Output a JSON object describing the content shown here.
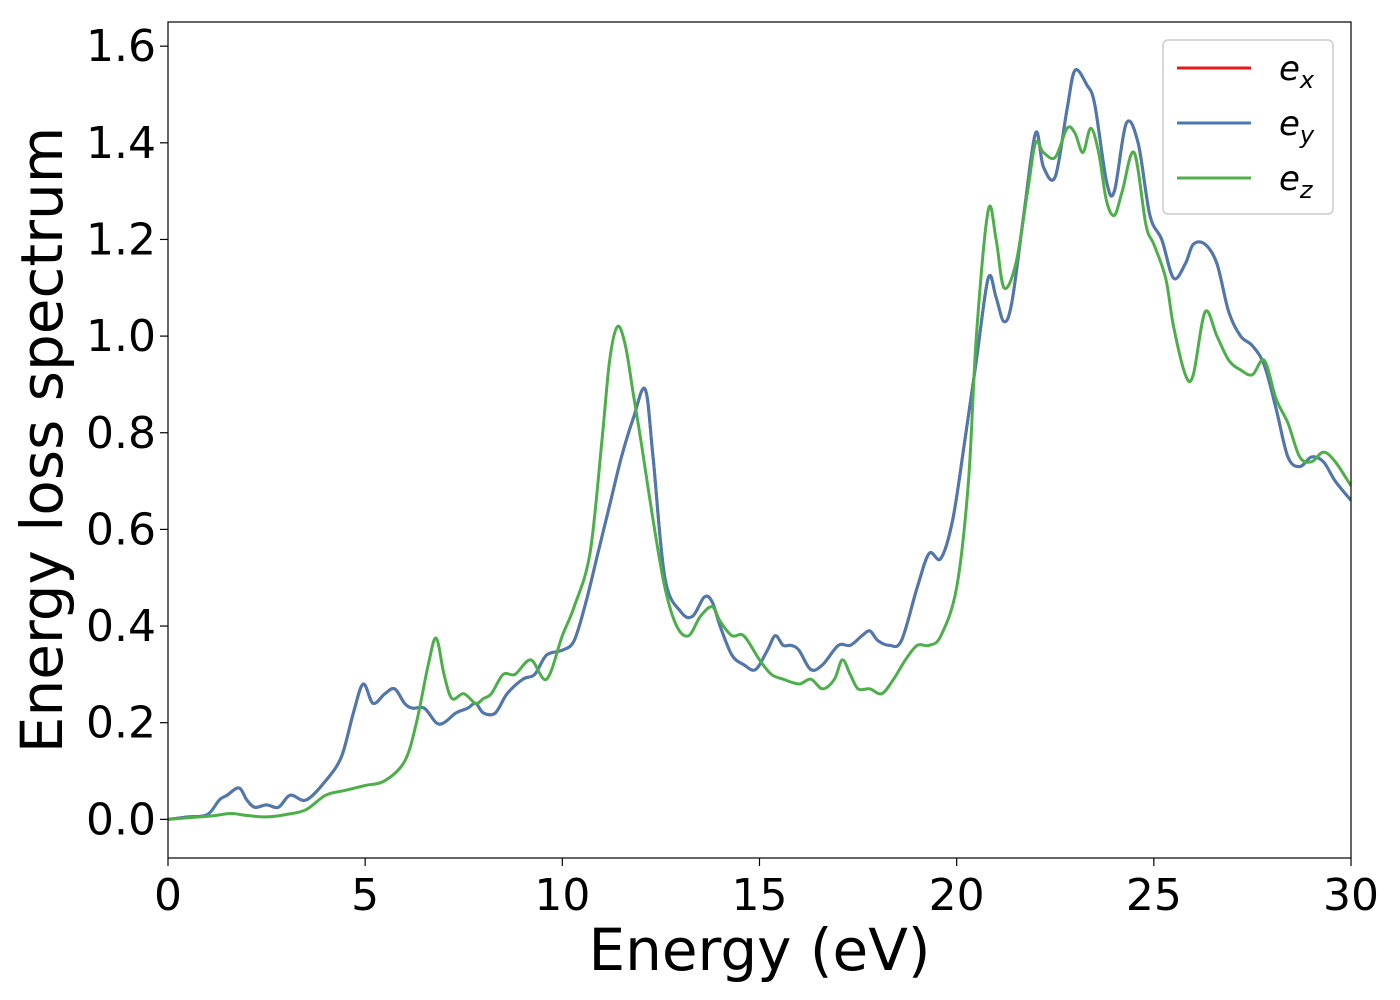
{
  "chart_data": {
    "type": "line",
    "xlabel": "Energy (eV)",
    "ylabel": "Energy loss spectrum",
    "xlim": [
      0,
      30
    ],
    "ylim": [
      -0.08,
      1.65
    ],
    "xticks": [
      0,
      5,
      10,
      15,
      20,
      25,
      30
    ],
    "xtick_labels": [
      "0",
      "5",
      "10",
      "15",
      "20",
      "25",
      "30"
    ],
    "yticks": [
      0.0,
      0.2,
      0.4,
      0.6,
      0.8,
      1.0,
      1.2,
      1.4,
      1.6
    ],
    "ytick_labels": [
      "0.0",
      "0.2",
      "0.4",
      "0.6",
      "0.8",
      "1.0",
      "1.2",
      "1.4",
      "1.6"
    ],
    "grid": false,
    "legend_position": "top-right",
    "series": [
      {
        "name": "e_x",
        "legend_base": "e",
        "legend_sub": "x",
        "color": "#e41a1c",
        "x": [
          0,
          0.5,
          1.0,
          1.3,
          1.5,
          1.8,
          2.0,
          2.2,
          2.5,
          2.8,
          3.1,
          3.5,
          4.0,
          4.4,
          4.7,
          4.95,
          5.2,
          5.5,
          5.75,
          6.0,
          6.2,
          6.5,
          6.8,
          7.0,
          7.3,
          7.6,
          7.8,
          8.0,
          8.3,
          8.6,
          9.0,
          9.3,
          9.6,
          10.0,
          10.3,
          10.6,
          10.9,
          11.2,
          11.5,
          11.8,
          12.1,
          12.3,
          12.6,
          13.0,
          13.3,
          13.6,
          13.8,
          14.0,
          14.3,
          14.6,
          14.9,
          15.2,
          15.4,
          15.6,
          15.8,
          16.0,
          16.3,
          16.6,
          17.0,
          17.3,
          17.6,
          17.8,
          18.0,
          18.3,
          18.6,
          19.0,
          19.3,
          19.6,
          19.9,
          20.2,
          20.5,
          20.8,
          21.0,
          21.2,
          21.4,
          21.7,
          22.0,
          22.2,
          22.5,
          22.8,
          23.0,
          23.3,
          23.5,
          23.8,
          24.0,
          24.3,
          24.6,
          24.9,
          25.2,
          25.5,
          25.8,
          26.0,
          26.3,
          26.6,
          26.9,
          27.2,
          27.5,
          27.8,
          28.1,
          28.4,
          28.7,
          29.0,
          29.3,
          29.6,
          30.0
        ],
        "y": [
          0.0,
          0.005,
          0.01,
          0.04,
          0.05,
          0.065,
          0.04,
          0.025,
          0.03,
          0.025,
          0.05,
          0.04,
          0.08,
          0.13,
          0.22,
          0.28,
          0.24,
          0.26,
          0.27,
          0.24,
          0.23,
          0.23,
          0.2,
          0.2,
          0.22,
          0.23,
          0.24,
          0.22,
          0.22,
          0.26,
          0.29,
          0.3,
          0.34,
          0.35,
          0.37,
          0.45,
          0.55,
          0.65,
          0.75,
          0.83,
          0.89,
          0.75,
          0.5,
          0.43,
          0.42,
          0.46,
          0.45,
          0.4,
          0.34,
          0.32,
          0.31,
          0.35,
          0.38,
          0.36,
          0.36,
          0.35,
          0.31,
          0.32,
          0.36,
          0.36,
          0.38,
          0.39,
          0.37,
          0.36,
          0.37,
          0.48,
          0.55,
          0.54,
          0.62,
          0.78,
          0.95,
          1.12,
          1.08,
          1.03,
          1.07,
          1.25,
          1.42,
          1.35,
          1.33,
          1.47,
          1.55,
          1.52,
          1.48,
          1.32,
          1.3,
          1.44,
          1.4,
          1.25,
          1.2,
          1.12,
          1.15,
          1.19,
          1.19,
          1.15,
          1.05,
          1.0,
          0.98,
          0.94,
          0.85,
          0.75,
          0.73,
          0.75,
          0.74,
          0.7,
          0.66
        ]
      },
      {
        "name": "e_y",
        "legend_base": "e",
        "legend_sub": "y",
        "color": "#4a7ab0",
        "x": [
          0,
          0.5,
          1.0,
          1.3,
          1.5,
          1.8,
          2.0,
          2.2,
          2.5,
          2.8,
          3.1,
          3.5,
          4.0,
          4.4,
          4.7,
          4.95,
          5.2,
          5.5,
          5.75,
          6.0,
          6.2,
          6.5,
          6.8,
          7.0,
          7.3,
          7.6,
          7.8,
          8.0,
          8.3,
          8.6,
          9.0,
          9.3,
          9.6,
          10.0,
          10.3,
          10.6,
          10.9,
          11.2,
          11.5,
          11.8,
          12.1,
          12.3,
          12.6,
          13.0,
          13.3,
          13.6,
          13.8,
          14.0,
          14.3,
          14.6,
          14.9,
          15.2,
          15.4,
          15.6,
          15.8,
          16.0,
          16.3,
          16.6,
          17.0,
          17.3,
          17.6,
          17.8,
          18.0,
          18.3,
          18.6,
          19.0,
          19.3,
          19.6,
          19.9,
          20.2,
          20.5,
          20.8,
          21.0,
          21.2,
          21.4,
          21.7,
          22.0,
          22.2,
          22.5,
          22.8,
          23.0,
          23.3,
          23.5,
          23.8,
          24.0,
          24.3,
          24.6,
          24.9,
          25.2,
          25.5,
          25.8,
          26.0,
          26.3,
          26.6,
          26.9,
          27.2,
          27.5,
          27.8,
          28.1,
          28.4,
          28.7,
          29.0,
          29.3,
          29.6,
          30.0
        ],
        "y": [
          0.0,
          0.005,
          0.01,
          0.04,
          0.05,
          0.065,
          0.04,
          0.025,
          0.03,
          0.025,
          0.05,
          0.04,
          0.08,
          0.13,
          0.22,
          0.28,
          0.24,
          0.26,
          0.27,
          0.24,
          0.23,
          0.23,
          0.2,
          0.2,
          0.22,
          0.23,
          0.24,
          0.22,
          0.22,
          0.26,
          0.29,
          0.3,
          0.34,
          0.35,
          0.37,
          0.45,
          0.55,
          0.65,
          0.75,
          0.83,
          0.89,
          0.75,
          0.5,
          0.43,
          0.42,
          0.46,
          0.45,
          0.4,
          0.34,
          0.32,
          0.31,
          0.35,
          0.38,
          0.36,
          0.36,
          0.35,
          0.31,
          0.32,
          0.36,
          0.36,
          0.38,
          0.39,
          0.37,
          0.36,
          0.37,
          0.48,
          0.55,
          0.54,
          0.62,
          0.78,
          0.95,
          1.12,
          1.08,
          1.03,
          1.07,
          1.25,
          1.42,
          1.35,
          1.33,
          1.47,
          1.55,
          1.52,
          1.48,
          1.32,
          1.3,
          1.44,
          1.4,
          1.25,
          1.2,
          1.12,
          1.15,
          1.19,
          1.19,
          1.15,
          1.05,
          1.0,
          0.98,
          0.94,
          0.85,
          0.75,
          0.73,
          0.75,
          0.74,
          0.7,
          0.66
        ]
      },
      {
        "name": "e_z",
        "legend_base": "e",
        "legend_sub": "z",
        "color": "#4daf4a",
        "x": [
          0,
          0.8,
          1.2,
          1.6,
          2.0,
          2.5,
          3.0,
          3.5,
          4.0,
          4.5,
          5.0,
          5.5,
          6.0,
          6.3,
          6.6,
          6.8,
          7.0,
          7.2,
          7.5,
          7.8,
          8.0,
          8.2,
          8.5,
          8.8,
          9.2,
          9.6,
          10.0,
          10.3,
          10.7,
          11.0,
          11.2,
          11.4,
          11.6,
          11.8,
          12.0,
          12.3,
          12.6,
          12.9,
          13.2,
          13.5,
          13.8,
          14.0,
          14.3,
          14.6,
          15.0,
          15.3,
          15.6,
          16.0,
          16.3,
          16.6,
          16.9,
          17.1,
          17.3,
          17.5,
          17.8,
          18.1,
          18.4,
          18.7,
          19.0,
          19.3,
          19.6,
          20.0,
          20.3,
          20.5,
          20.8,
          21.0,
          21.2,
          21.5,
          21.8,
          22.0,
          22.2,
          22.5,
          22.8,
          23.0,
          23.2,
          23.4,
          23.6,
          23.8,
          24.0,
          24.2,
          24.5,
          24.8,
          25.0,
          25.3,
          25.5,
          25.8,
          26.0,
          26.3,
          26.6,
          26.9,
          27.2,
          27.5,
          27.8,
          28.1,
          28.4,
          28.7,
          29.0,
          29.3,
          29.6,
          30.0
        ],
        "y": [
          0.0,
          0.005,
          0.008,
          0.012,
          0.008,
          0.005,
          0.01,
          0.02,
          0.05,
          0.06,
          0.07,
          0.08,
          0.12,
          0.2,
          0.32,
          0.375,
          0.3,
          0.25,
          0.26,
          0.24,
          0.25,
          0.26,
          0.3,
          0.3,
          0.33,
          0.29,
          0.38,
          0.44,
          0.55,
          0.78,
          0.95,
          1.02,
          0.98,
          0.88,
          0.78,
          0.62,
          0.48,
          0.4,
          0.38,
          0.42,
          0.44,
          0.41,
          0.38,
          0.38,
          0.33,
          0.3,
          0.29,
          0.28,
          0.29,
          0.27,
          0.29,
          0.33,
          0.3,
          0.27,
          0.27,
          0.26,
          0.29,
          0.33,
          0.36,
          0.36,
          0.38,
          0.48,
          0.7,
          1.0,
          1.26,
          1.2,
          1.1,
          1.15,
          1.3,
          1.4,
          1.38,
          1.37,
          1.43,
          1.42,
          1.38,
          1.43,
          1.38,
          1.28,
          1.25,
          1.3,
          1.38,
          1.23,
          1.19,
          1.12,
          1.02,
          0.92,
          0.92,
          1.05,
          1.0,
          0.95,
          0.93,
          0.92,
          0.95,
          0.87,
          0.82,
          0.75,
          0.74,
          0.76,
          0.74,
          0.69
        ]
      }
    ]
  }
}
